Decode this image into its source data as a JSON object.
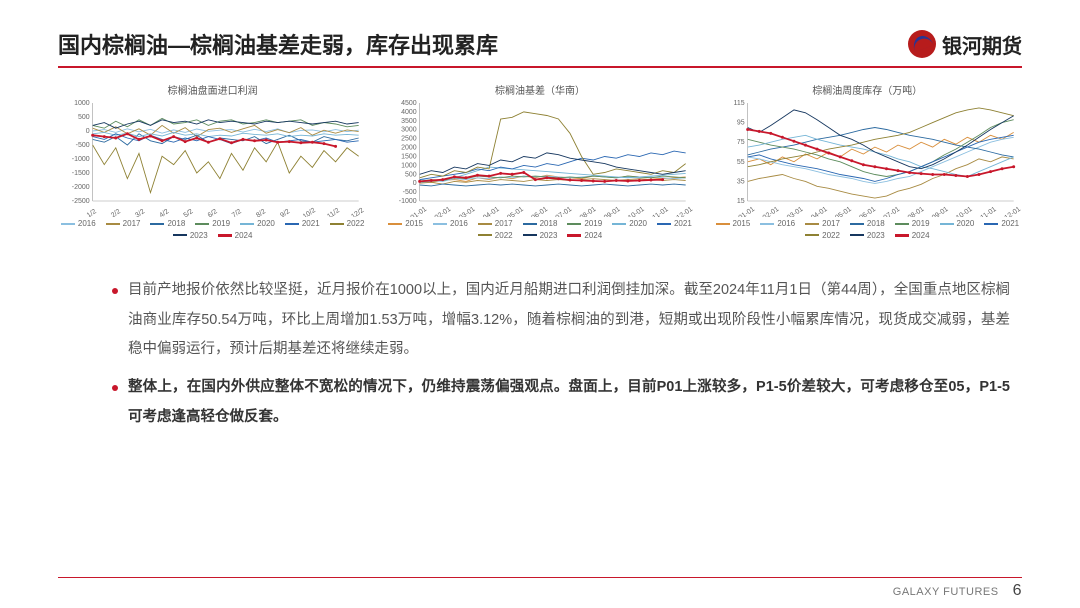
{
  "brand": {
    "name": "银河期货",
    "footer_label": "GALAXY FUTURES"
  },
  "page_number": "6",
  "title": "国内棕榈油—棕榈油基差走弱，库存出现累库",
  "accent_color": "#c8172b",
  "year_colors": {
    "2015": "#d98f3c",
    "2016": "#8bbfe0",
    "2017": "#a88b43",
    "2018": "#2c6aa0",
    "2019": "#5d8c5d",
    "2020": "#75b5d6",
    "2021": "#2a67b2",
    "2022": "#8e8133",
    "2023": "#16375f",
    "2024": "#c8172b"
  },
  "chart1": {
    "title": "棕榈油盘面进口利润",
    "type": "line",
    "ylim": [
      -2500,
      1000
    ],
    "ytick_step": 500,
    "x_labels": [
      "1/2",
      "2/2",
      "3/2",
      "4/2",
      "5/2",
      "6/2",
      "7/2",
      "8/2",
      "9/2",
      "10/2",
      "11/2",
      "12/2"
    ],
    "legend_years": [
      "2016",
      "2017",
      "2018",
      "2019",
      "2020",
      "2021",
      "2022",
      "2023",
      "2024"
    ],
    "series": {
      "2016": [
        0,
        50,
        -50,
        80,
        -30,
        60,
        -80,
        40,
        -50,
        70,
        -10,
        30,
        50,
        -40,
        60,
        -20,
        80,
        -60,
        20,
        40,
        -30,
        50,
        -20,
        30
      ],
      "2017": [
        100,
        -50,
        150,
        -100,
        80,
        -150,
        200,
        -80,
        120,
        -200,
        50,
        100,
        -50,
        80,
        200,
        -80,
        50,
        -60,
        120,
        -150,
        30,
        -80,
        40,
        -20
      ],
      "2018": [
        -300,
        -400,
        -200,
        -500,
        -100,
        -350,
        -450,
        -200,
        -300,
        -150,
        -400,
        -250,
        -300,
        -350,
        -200,
        -450,
        -300,
        -150,
        -350,
        -400,
        -200,
        -300,
        -350,
        -250
      ],
      "2019": [
        200,
        100,
        350,
        150,
        400,
        200,
        450,
        250,
        300,
        400,
        200,
        350,
        400,
        250,
        300,
        400,
        300,
        350,
        400,
        200,
        300,
        250,
        150,
        200
      ],
      "2020": [
        -100,
        -50,
        -150,
        -80,
        -200,
        -100,
        -180,
        -50,
        -150,
        -100,
        -200,
        -150,
        -180,
        -80,
        -120,
        -150,
        -100,
        -200,
        -150,
        -180,
        -100,
        -150,
        -120,
        -150
      ],
      "2021": [
        -200,
        -300,
        -100,
        -250,
        -350,
        -150,
        -300,
        -400,
        -250,
        -350,
        -200,
        -300,
        -450,
        -300,
        -350,
        -250,
        -400,
        -350,
        -300,
        -400,
        -350,
        -300,
        -400,
        -350
      ],
      "2022": [
        -500,
        -1200,
        -600,
        -1700,
        -800,
        -2200,
        -900,
        -1200,
        -700,
        -1500,
        -1100,
        -1700,
        -800,
        -1400,
        -600,
        -1100,
        -400,
        -1500,
        -900,
        -1300,
        -700,
        -1100,
        -600,
        -900
      ],
      "2023": [
        200,
        300,
        100,
        250,
        350,
        200,
        400,
        300,
        350,
        250,
        400,
        300,
        350,
        300,
        250,
        350,
        300,
        350,
        300,
        250,
        300,
        350,
        250,
        300
      ],
      "2024": [
        -150,
        -200,
        -250,
        -100,
        -300,
        -180,
        -350,
        -200,
        -380,
        -250,
        -400,
        -280,
        -420,
        -300,
        -350,
        -320,
        -400,
        -380,
        -420,
        -400,
        -450,
        -550
      ]
    }
  },
  "chart2": {
    "title": "棕榈油基差（华南）",
    "type": "line",
    "ylim": [
      -1000,
      4500
    ],
    "ytick_step": 500,
    "x_labels": [
      "01-01",
      "02-01",
      "03-01",
      "04-01",
      "05-01",
      "06-01",
      "07-01",
      "08-01",
      "09-01",
      "10-01",
      "11-01",
      "12-01"
    ],
    "legend_years": [
      "2015",
      "2016",
      "2017",
      "2018",
      "2019",
      "2020",
      "2021",
      "2022",
      "2023",
      "2024"
    ],
    "series": {
      "2015": [
        100,
        50,
        150,
        200,
        100,
        300,
        200,
        350,
        250,
        400,
        300,
        450,
        350,
        300,
        250,
        400,
        350,
        300,
        400,
        350,
        300,
        250,
        300,
        350
      ],
      "2016": [
        200,
        150,
        100,
        250,
        200,
        300,
        250,
        350,
        300,
        400,
        350,
        400,
        350,
        300,
        350,
        400,
        350,
        300,
        350,
        300,
        350,
        300,
        250,
        300
      ],
      "2017": [
        0,
        50,
        -50,
        100,
        50,
        150,
        100,
        200,
        150,
        100,
        200,
        150,
        200,
        150,
        200,
        250,
        200,
        150,
        200,
        250,
        200,
        150,
        200,
        150
      ],
      "2018": [
        -100,
        -150,
        -50,
        -100,
        -150,
        -100,
        -50,
        -100,
        -50,
        -100,
        -150,
        -100,
        -50,
        -100,
        -150,
        -100,
        -50,
        -100,
        -150,
        -100,
        -50,
        -100,
        -50,
        -100
      ],
      "2019": [
        100,
        200,
        150,
        300,
        250,
        400,
        350,
        300,
        400,
        350,
        400,
        350,
        300,
        350,
        300,
        400,
        350,
        300,
        400,
        350,
        300,
        400,
        350,
        300
      ],
      "2020": [
        50,
        100,
        200,
        300,
        500,
        700,
        900,
        850,
        800,
        750,
        700,
        650,
        600,
        550,
        500,
        450,
        400,
        350,
        300,
        350,
        400,
        450,
        500,
        550
      ],
      "2021": [
        200,
        300,
        400,
        500,
        600,
        800,
        700,
        900,
        800,
        1000,
        900,
        1100,
        1000,
        1200,
        1400,
        1300,
        1500,
        1400,
        1600,
        1500,
        1700,
        1600,
        1800,
        1700
      ],
      "2022": [
        300,
        500,
        400,
        700,
        600,
        900,
        800,
        3600,
        3700,
        4000,
        3900,
        3800,
        3600,
        2800,
        1500,
        500,
        600,
        800,
        700,
        600,
        500,
        700,
        600,
        1100
      ],
      "2023": [
        500,
        700,
        600,
        900,
        800,
        1100,
        1000,
        1300,
        1200,
        1500,
        1400,
        1700,
        1600,
        1400,
        1300,
        1200,
        1100,
        900,
        800,
        700,
        600,
        500,
        600,
        700
      ],
      "2024": [
        100,
        150,
        200,
        350,
        300,
        450,
        400,
        550,
        500,
        600,
        200,
        300,
        250,
        180,
        150,
        120,
        100,
        150,
        120,
        150,
        180,
        200
      ]
    }
  },
  "chart3": {
    "title": "棕榈油周度库存（万吨）",
    "type": "line",
    "ylim": [
      15,
      115
    ],
    "ytick_step": 20,
    "x_labels": [
      "01-01",
      "02-01",
      "03-01",
      "04-01",
      "05-01",
      "06-01",
      "07-01",
      "08-01",
      "09-01",
      "10-01",
      "11-01",
      "12-01"
    ],
    "legend_years": [
      "2015",
      "2016",
      "2017",
      "2018",
      "2019",
      "2020",
      "2021",
      "2022",
      "2023",
      "2024"
    ],
    "series": {
      "2015": [
        55,
        58,
        52,
        60,
        55,
        63,
        58,
        65,
        60,
        68,
        63,
        70,
        65,
        72,
        68,
        75,
        70,
        78,
        73,
        80,
        75,
        82,
        78,
        85
      ],
      "2016": [
        60,
        58,
        55,
        52,
        50,
        48,
        45,
        42,
        40,
        38,
        35,
        33,
        35,
        38,
        40,
        45,
        50,
        55,
        60,
        65,
        70,
        75,
        78,
        80
      ],
      "2017": [
        35,
        38,
        40,
        42,
        38,
        35,
        30,
        28,
        25,
        22,
        20,
        18,
        20,
        25,
        28,
        32,
        38,
        42,
        48,
        52,
        58,
        55,
        60,
        58
      ],
      "2018": [
        62,
        65,
        68,
        70,
        72,
        75,
        78,
        80,
        82,
        85,
        88,
        90,
        88,
        85,
        82,
        80,
        78,
        75,
        72,
        70,
        68,
        65,
        62,
        60
      ],
      "2019": [
        78,
        75,
        72,
        70,
        68,
        65,
        62,
        58,
        55,
        50,
        45,
        42,
        40,
        42,
        45,
        50,
        55,
        62,
        68,
        75,
        82,
        90,
        95,
        98
      ],
      "2020": [
        70,
        72,
        75,
        78,
        80,
        82,
        78,
        75,
        72,
        70,
        68,
        65,
        62,
        58,
        55,
        50,
        48,
        45,
        42,
        40,
        45,
        50,
        55,
        60
      ],
      "2021": [
        60,
        62,
        58,
        55,
        52,
        50,
        48,
        45,
        42,
        40,
        38,
        35,
        38,
        42,
        45,
        50,
        55,
        60,
        65,
        70,
        75,
        78,
        80,
        82
      ],
      "2022": [
        50,
        52,
        55,
        58,
        60,
        62,
        65,
        68,
        70,
        72,
        75,
        78,
        80,
        82,
        85,
        90,
        95,
        100,
        105,
        108,
        110,
        108,
        105,
        102
      ],
      "2023": [
        90,
        85,
        92,
        100,
        108,
        105,
        98,
        90,
        82,
        78,
        72,
        65,
        60,
        55,
        50,
        48,
        52,
        58,
        65,
        72,
        80,
        88,
        95,
        102
      ],
      "2024": [
        88,
        86,
        84,
        80,
        76,
        72,
        68,
        64,
        60,
        56,
        52,
        50,
        48,
        46,
        44,
        43,
        42,
        42,
        41,
        40,
        42,
        45,
        48,
        50
      ]
    }
  },
  "bullets": [
    {
      "bold": false,
      "text": "目前产地报价依然比较坚挺，近月报价在1000以上，国内近月船期进口利润倒挂加深。截至2024年11月1日（第44周），全国重点地区棕榈油商业库存50.54万吨，环比上周增加1.53万吨，增幅3.12%，随着棕榈油的到港，短期或出现阶段性小幅累库情况，现货成交减弱，基差稳中偏弱运行，预计后期基差还将继续走弱。"
    },
    {
      "bold": true,
      "text": "整体上，在国内外供应整体不宽松的情况下，仍维持震荡偏强观点。盘面上，目前P01上涨较多，P1-5价差较大，可考虑移仓至05，P1-5可考虑逢高轻仓做反套。"
    }
  ]
}
